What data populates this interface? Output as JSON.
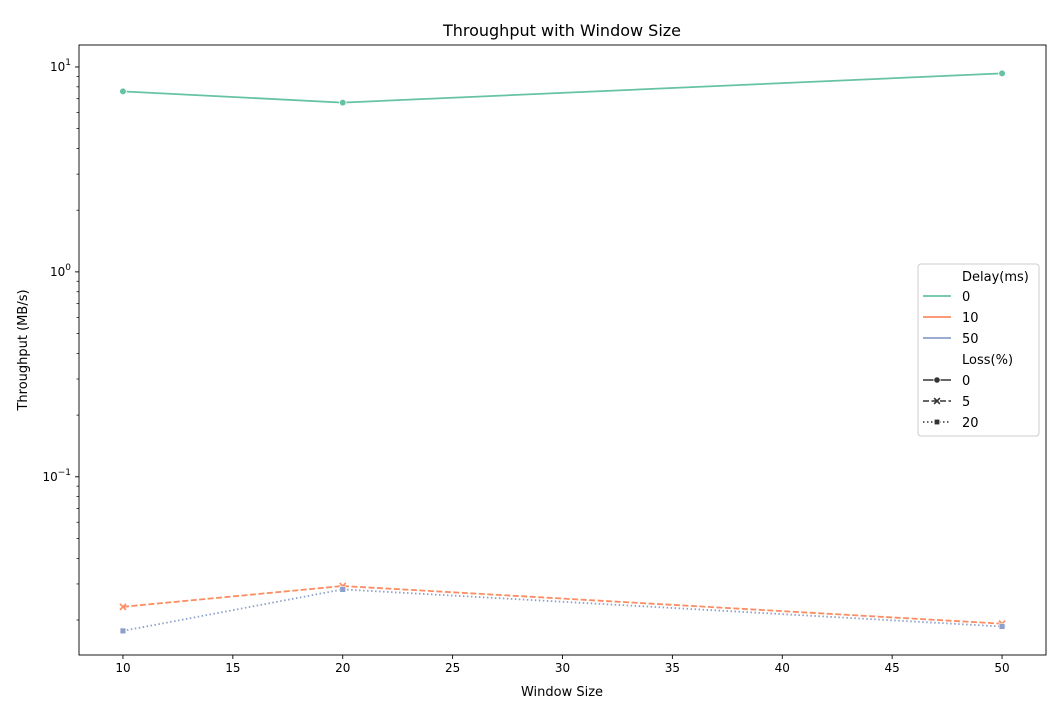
{
  "chart_data": {
    "type": "line",
    "title": "Throughput with Window Size",
    "xlabel": "Window Size",
    "ylabel": "Throughput (MB/s)",
    "yscale": "log",
    "xlim": [
      8,
      52
    ],
    "ylim": [
      0.0135,
      12.8
    ],
    "x_ticks": [
      10,
      15,
      20,
      25,
      30,
      35,
      40,
      45,
      50
    ],
    "y_ticks": [
      {
        "value": 0.1,
        "base": "10",
        "exp": "−1"
      },
      {
        "value": 1,
        "base": "10",
        "exp": "0"
      },
      {
        "value": 10,
        "base": "10",
        "exp": "1"
      }
    ],
    "x": [
      10,
      20,
      50
    ],
    "series": [
      {
        "delay": "0",
        "loss": "0",
        "color": "#66c2a5",
        "dash": "solid",
        "marker": "circle",
        "values": [
          7.6,
          6.7,
          9.3
        ]
      },
      {
        "delay": "10",
        "loss": "5",
        "color": "#fc8d62",
        "dash": "dashed",
        "marker": "x",
        "values": [
          0.0232,
          0.0293,
          0.0192
        ]
      },
      {
        "delay": "50",
        "loss": "20",
        "color": "#8da0cb",
        "dash": "dotted",
        "marker": "square",
        "values": [
          0.0177,
          0.0282,
          0.0186
        ]
      }
    ],
    "grid": false,
    "legend": {
      "placement": "center-right",
      "hue_title": "Delay(ms)",
      "hue_entries": [
        {
          "label": "0",
          "color": "#66c2a5"
        },
        {
          "label": "10",
          "color": "#fc8d62"
        },
        {
          "label": "50",
          "color": "#8da0cb"
        }
      ],
      "style_title": "Loss(%)",
      "style_entries": [
        {
          "label": "0",
          "dash": "solid",
          "marker": "circle"
        },
        {
          "label": "5",
          "dash": "dashed",
          "marker": "x"
        },
        {
          "label": "20",
          "dash": "dotted",
          "marker": "square"
        }
      ]
    }
  }
}
